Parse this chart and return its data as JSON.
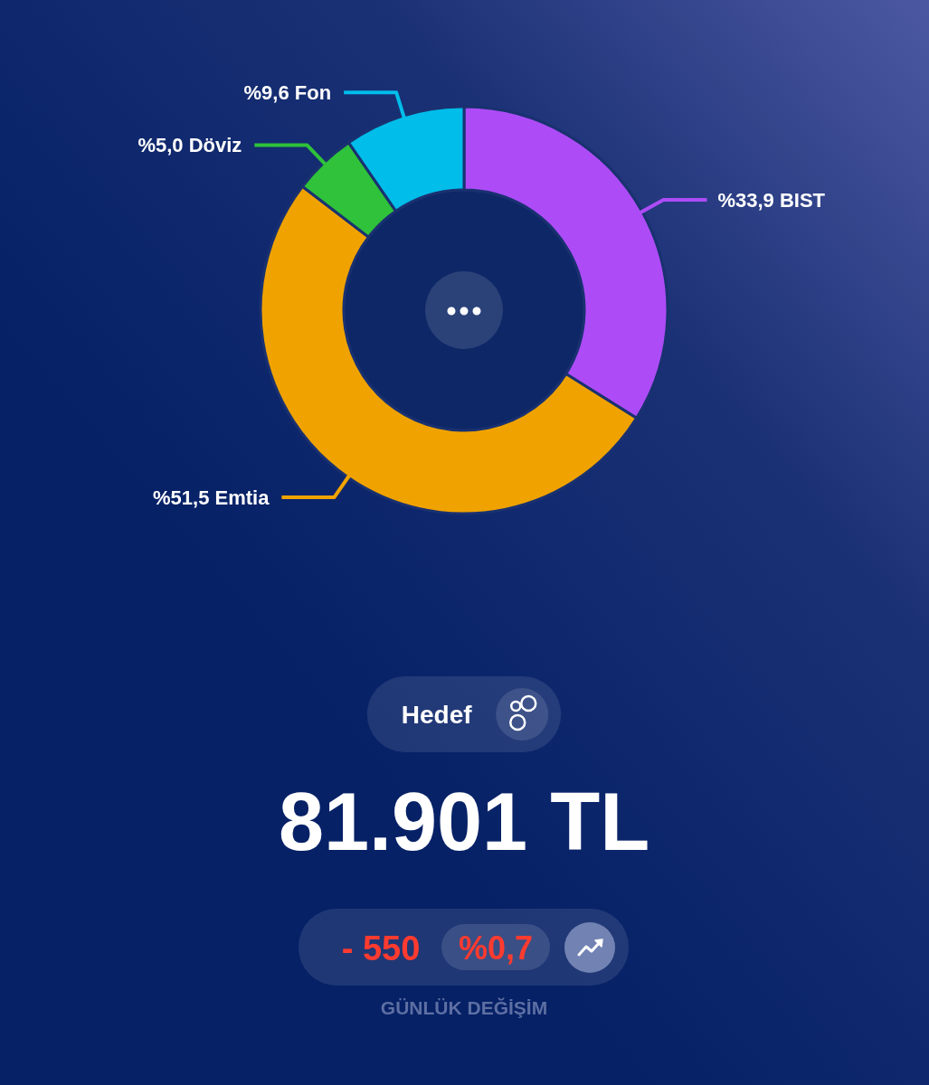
{
  "chart_data": {
    "type": "donut",
    "categories": [
      "BIST",
      "Emtia",
      "Döviz",
      "Fon"
    ],
    "values": [
      33.9,
      51.5,
      5.0,
      9.6
    ],
    "colors": [
      "#ad4cf7",
      "#f0a300",
      "#2fc23a",
      "#00bdea"
    ],
    "value_labels": [
      "%33,9",
      "%51,5",
      "%5,0",
      "%9,6"
    ],
    "annotations": [
      "Hedef",
      "81.901 TL",
      "- 550",
      "%0,7",
      "GÜNLÜK DEĞİŞİM"
    ]
  }
}
